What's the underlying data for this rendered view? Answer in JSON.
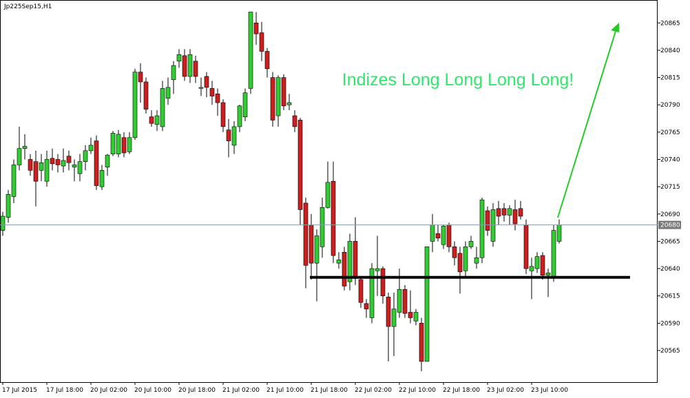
{
  "chart_data": {
    "type": "candlestick",
    "title": "Jp225Sep15,H1",
    "annotation": "Indizes Long Long Long Long!",
    "categories": [
      "17 Jul 2015",
      null,
      null,
      null,
      null,
      null,
      null,
      null,
      "17 Jul 18:00",
      null,
      null,
      null,
      null,
      null,
      null,
      null,
      "20 Jul 02:00",
      null,
      null,
      null,
      null,
      null,
      null,
      null,
      "20 Jul 10:00",
      null,
      null,
      null,
      null,
      null,
      null,
      null,
      "20 Jul 18:00",
      null,
      null,
      null,
      null,
      null,
      null,
      null,
      "21 Jul 02:00",
      null,
      null,
      null,
      null,
      null,
      null,
      null,
      "21 Jul 10:00",
      null,
      null,
      null,
      null,
      null,
      null,
      null,
      "21 Jul 18:00",
      null,
      null,
      null,
      null,
      null,
      null,
      null,
      "22 Jul 02:00",
      null,
      null,
      null,
      null,
      null,
      null,
      null,
      "22 Jul 10:00",
      null,
      null,
      null,
      null,
      null,
      null,
      null,
      "22 Jul 18:00",
      null,
      null,
      null,
      null,
      null,
      null,
      null,
      "23 Jul 02:00",
      null,
      null,
      null,
      null,
      null,
      null,
      null,
      "23 Jul 10:00",
      null,
      null,
      null,
      null,
      null
    ],
    "open": [
      20675,
      20687,
      20706,
      20735,
      20750,
      20740,
      20738,
      20730,
      20720,
      20741,
      20740,
      20734,
      20743,
      20733,
      20727,
      20738,
      20748,
      20757,
      20715,
      20733,
      20745,
      20745,
      20760,
      20747,
      20760,
      20820,
      20811,
      20779,
      20772,
      20770,
      20796,
      20813,
      20830,
      20835,
      20816,
      20830,
      20805,
      20816,
      20805,
      20800,
      20792,
      20767,
      20753,
      20770,
      20779,
      20805,
      20865,
      20856,
      20839,
      20815,
      20780,
      20815,
      20790,
      20780,
      20776,
      20700,
      20680,
      20645,
      20660,
      20696,
      20720,
      20645,
      20655,
      20628,
      20665,
      20630,
      20608,
      20595,
      20638,
      20640,
      20614,
      20587,
      20600,
      20621,
      20600,
      20592,
      20590,
      20555,
      20665,
      20672,
      20662,
      20680,
      20660,
      20654,
      20638,
      20660,
      20645,
      20650,
      20693,
      20665,
      20695,
      20695,
      20689,
      20694,
      20695,
      20680,
      20638,
      20640,
      20652,
      20634,
      20633,
      20665
    ],
    "high": [
      20692,
      20712,
      20740,
      20770,
      20763,
      20745,
      20748,
      20745,
      20748,
      20750,
      20745,
      20750,
      20748,
      20740,
      20745,
      20753,
      20760,
      20762,
      20735,
      20745,
      20766,
      20767,
      20765,
      20765,
      20823,
      20828,
      20815,
      20785,
      20785,
      20812,
      20815,
      20830,
      20841,
      20841,
      20841,
      20835,
      20815,
      20820,
      20812,
      20805,
      20795,
      20777,
      20775,
      20790,
      20805,
      20875,
      20875,
      20866,
      20842,
      20820,
      20817,
      20818,
      20800,
      20785,
      20778,
      20705,
      20690,
      20676,
      20705,
      20738,
      20738,
      20655,
      20660,
      20672,
      20687,
      20633,
      20612,
      20645,
      20670,
      20642,
      20618,
      20618,
      20640,
      20625,
      20620,
      20603,
      20595,
      20660,
      20690,
      20680,
      20680,
      20682,
      20665,
      20660,
      20665,
      20670,
      20660,
      20705,
      20697,
      20700,
      20702,
      20700,
      20698,
      20703,
      20702,
      20685,
      20650,
      20655,
      20655,
      20640,
      20680,
      20685
    ],
    "low": [
      20670,
      20682,
      20700,
      20730,
      20740,
      20725,
      20697,
      20720,
      20715,
      20730,
      20728,
      20728,
      20730,
      20720,
      20720,
      20730,
      20745,
      20712,
      20712,
      20725,
      20743,
      20742,
      20742,
      20745,
      20758,
      20792,
      20782,
      20770,
      20766,
      20766,
      20790,
      20800,
      20824,
      20812,
      20810,
      20810,
      20798,
      20797,
      20790,
      20780,
      20765,
      20742,
      20745,
      20765,
      20775,
      20800,
      20845,
      20830,
      20815,
      20770,
      20770,
      20785,
      20785,
      20765,
      20680,
      20622,
      20630,
      20610,
      20650,
      20695,
      20645,
      20640,
      20620,
      20620,
      20625,
      20604,
      20595,
      20590,
      20615,
      20608,
      20555,
      20560,
      20595,
      20595,
      20590,
      20588,
      20546,
      20555,
      20655,
      20665,
      20658,
      20655,
      20643,
      20617,
      20632,
      20658,
      20640,
      20645,
      20670,
      20660,
      20680,
      20683,
      20680,
      20675,
      20685,
      20635,
      20612,
      20636,
      20630,
      20614,
      20628,
      20663
    ],
    "close": [
      20688,
      20708,
      20735,
      20750,
      20752,
      20730,
      20720,
      20737,
      20740,
      20736,
      20735,
      20739,
      20737,
      20735,
      20738,
      20748,
      20753,
      20716,
      20730,
      20744,
      20764,
      20763,
      20746,
      20760,
      20820,
      20811,
      20786,
      20773,
      20780,
      20805,
      20806,
      20826,
      20836,
      20816,
      20836,
      20816,
      20806,
      20806,
      20798,
      20792,
      20770,
      20757,
      20770,
      20789,
      20801,
      20875,
      20855,
      20839,
      20823,
      20776,
      20815,
      20789,
      20792,
      20770,
      20694,
      20643,
      20645,
      20670,
      20696,
      20719,
      20652,
      20648,
      20624,
      20665,
      20631,
      20609,
      20603,
      20640,
      20640,
      20615,
      20587,
      20603,
      20621,
      20599,
      20595,
      20600,
      20555,
      20660,
      20680,
      20668,
      20679,
      20660,
      20650,
      20637,
      20660,
      20665,
      20650,
      20703,
      20675,
      20694,
      20688,
      20689,
      20695,
      20681,
      20688,
      20640,
      20642,
      20651,
      20634,
      20636,
      20675,
      20680
    ],
    "up_color": "#32cd32",
    "down_color": "#cc1f1f",
    "current_price": 20680,
    "support_level": 20632,
    "ylim": [
      20536,
      20886
    ],
    "yticks": [
      20565,
      20590,
      20615,
      20640,
      20665,
      20690,
      20715,
      20740,
      20765,
      20790,
      20815,
      20840,
      20865
    ],
    "grid": false
  }
}
